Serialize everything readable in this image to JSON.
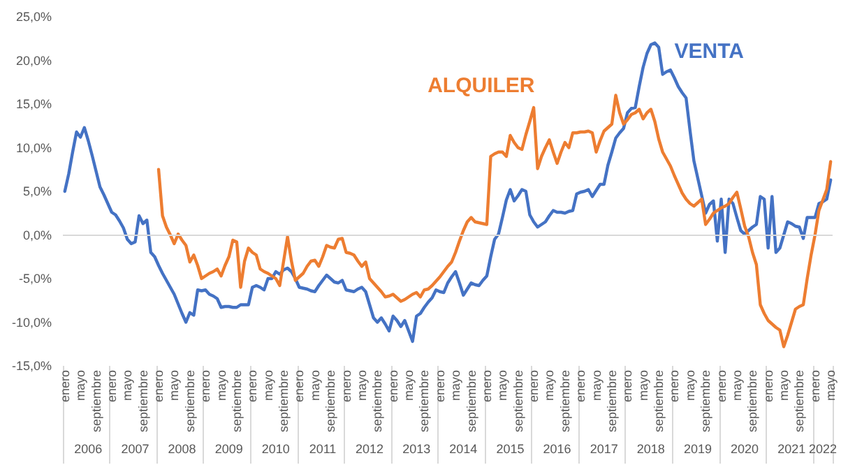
{
  "chart_data": {
    "type": "line",
    "categories": [
      "enero",
      null,
      null,
      null,
      "mayo",
      null,
      null,
      null,
      "septiembre",
      null,
      null,
      null,
      "enero",
      null,
      null,
      null,
      "mayo",
      null,
      null,
      null,
      "septiembre",
      null,
      null,
      null,
      "enero",
      null,
      null,
      null,
      "mayo",
      null,
      null,
      null,
      "septiembre",
      null,
      null,
      null,
      "enero",
      null,
      null,
      null,
      "mayo",
      null,
      null,
      null,
      "septiembre",
      null,
      null,
      null,
      "enero",
      null,
      null,
      null,
      "mayo",
      null,
      null,
      null,
      "septiembre",
      null,
      null,
      null,
      "enero",
      null,
      null,
      null,
      "mayo",
      null,
      null,
      null,
      "septiembre",
      null,
      null,
      null,
      "enero",
      null,
      null,
      null,
      "mayo",
      null,
      null,
      null,
      "septiembre",
      null,
      null,
      null,
      "enero",
      null,
      null,
      null,
      "mayo",
      null,
      null,
      null,
      "septiembre",
      null,
      null,
      null,
      "enero",
      null,
      null,
      null,
      "mayo",
      null,
      null,
      null,
      "septiembre",
      null,
      null,
      null,
      "enero",
      null,
      null,
      null,
      "mayo",
      null,
      null,
      null,
      "septiembre",
      null,
      null,
      null,
      "enero",
      null,
      null,
      null,
      "mayo",
      null,
      null,
      null,
      "septiembre",
      null,
      null,
      null,
      "enero",
      null,
      null,
      null,
      "mayo",
      null,
      null,
      null,
      "septiembre",
      null,
      null,
      null,
      "enero",
      null,
      null,
      null,
      "mayo",
      null,
      null,
      null,
      "septiembre",
      null,
      null,
      null,
      "enero",
      null,
      null,
      null,
      "mayo",
      null,
      null,
      null,
      "septiembre",
      null,
      null,
      null,
      "enero",
      null,
      null,
      null,
      "mayo",
      null,
      null,
      null,
      "septiembre",
      null,
      null,
      null,
      "enero",
      null,
      null,
      null,
      "mayo",
      null,
      null,
      null,
      "septiembre",
      null,
      null,
      null,
      "enero",
      null,
      null,
      null,
      "mayo"
    ],
    "series": [
      {
        "name": "VENTA",
        "color": "#4472c4",
        "values": [
          5,
          7,
          9.5,
          11.8,
          11.2,
          12.3,
          10.8,
          9.1,
          7.3,
          5.5,
          4.6,
          3.6,
          2.6,
          2.3,
          1.6,
          0.8,
          -0.5,
          -1,
          -0.8,
          2.2,
          1.3,
          1.7,
          -2,
          -2.5,
          -3.5,
          -4.4,
          -5.2,
          -6,
          -6.8,
          -7.9,
          -9,
          -10,
          -8.9,
          -9.2,
          -6.3,
          -6.4,
          -6.3,
          -6.8,
          -7,
          -7.3,
          -8.3,
          -8.2,
          -8.2,
          -8.3,
          -8.3,
          -8,
          -8,
          -8,
          -6,
          -5.8,
          -6,
          -6.3,
          -5,
          -5,
          -4.2,
          -4.5,
          -4,
          -3.8,
          -4.2,
          -5,
          -6,
          -6.1,
          -6.2,
          -6.4,
          -6.5,
          -5.8,
          -5.2,
          -4.6,
          -5,
          -5.4,
          -5.5,
          -5.2,
          -6.3,
          -6.4,
          -6.5,
          -6.2,
          -6,
          -6.5,
          -8,
          -9.5,
          -10,
          -9.5,
          -10.2,
          -11,
          -9.3,
          -9.8,
          -10.5,
          -9.8,
          -11,
          -12.2,
          -9.3,
          -9,
          -8.3,
          -7.7,
          -7.2,
          -6.3,
          -6.5,
          -6.6,
          -5.5,
          -4.8,
          -4.2,
          -5.5,
          -6.9,
          -6.2,
          -5.5,
          -5.7,
          -5.8,
          -5.2,
          -4.7,
          -2.5,
          -0.5,
          0.1,
          2,
          4,
          5.2,
          3.9,
          4.5,
          5.2,
          5,
          2.3,
          1.5,
          0.9,
          1.2,
          1.5,
          2.2,
          2.8,
          2.6,
          2.6,
          2.5,
          2.7,
          2.8,
          4.7,
          4.9,
          5,
          5.2,
          4.4,
          5.1,
          5.8,
          5.8,
          8,
          9.5,
          11.1,
          11.7,
          12.2,
          14,
          14.5,
          14.6,
          17,
          19.2,
          20.8,
          21.8,
          22,
          21.5,
          18.4,
          18.7,
          18.9,
          18,
          17,
          16.3,
          15.7,
          12,
          8.5,
          6.5,
          4.5,
          2.5,
          3.5,
          3.9,
          -0.7,
          4.1,
          -2,
          4.1,
          3.6,
          2,
          0.5,
          0.1,
          0.5,
          0.9,
          1.2,
          4.4,
          4.1,
          -1.5,
          4.4,
          -2,
          -1.5,
          0,
          1.5,
          1.3,
          1,
          0.9,
          -0.4,
          2,
          2,
          2,
          3.6,
          3.8,
          4.1,
          6.3
        ]
      },
      {
        "name": "ALQUILER",
        "color": "#ed7d31",
        "values": [
          null,
          null,
          null,
          null,
          null,
          null,
          null,
          null,
          null,
          null,
          null,
          null,
          null,
          null,
          null,
          null,
          null,
          null,
          null,
          null,
          null,
          null,
          null,
          null,
          7.5,
          2.2,
          0.9,
          0,
          -1,
          0.1,
          -0.6,
          -1.2,
          -3.1,
          -2.3,
          -3.5,
          -5,
          -4.7,
          -4.4,
          -4.2,
          -3.9,
          -4.7,
          -3.5,
          -2.5,
          -0.6,
          -0.8,
          -6,
          -3,
          -1.5,
          -2,
          -2.3,
          -3.9,
          -4.2,
          -4.4,
          -4.7,
          -5,
          -5.8,
          -3,
          -0.2,
          -3,
          -5.2,
          -4.8,
          -4.4,
          -3.6,
          -3,
          -2.9,
          -3.6,
          -2.5,
          -1.2,
          -1.4,
          -1.5,
          -0.5,
          -0.4,
          -2,
          -2.1,
          -2.3,
          -3,
          -3.6,
          -3.1,
          -5,
          -5.5,
          -6,
          -6.5,
          -7.1,
          -7,
          -6.8,
          -7.2,
          -7.6,
          -7.4,
          -7.1,
          -6.8,
          -6.6,
          -7.1,
          -6.3,
          -6.2,
          -5.8,
          -5.3,
          -4.8,
          -4.2,
          -3.6,
          -3.1,
          -2,
          -0.7,
          0.5,
          1.5,
          2,
          1.5,
          1.4,
          1.3,
          1.2,
          9,
          9.3,
          9.5,
          9.5,
          9,
          11.4,
          10.6,
          10,
          9.8,
          11.5,
          13,
          14.6,
          7.6,
          9,
          10,
          10.9,
          9.5,
          8.2,
          9.5,
          10.6,
          10,
          11.7,
          11.7,
          11.8,
          11.8,
          11.9,
          11.7,
          9.5,
          10.8,
          11.9,
          12.3,
          12.7,
          16,
          14,
          12.7,
          13.2,
          13.8,
          14,
          14.4,
          13.3,
          14,
          14.4,
          13,
          11,
          9.5,
          8.7,
          7.9,
          6.8,
          5.8,
          4.8,
          4.1,
          3.6,
          3.3,
          3.7,
          4.1,
          1.2,
          1.8,
          2.5,
          2.8,
          3.1,
          3.3,
          3.6,
          4.3,
          4.9,
          3,
          1,
          -0.2,
          -2,
          -3.4,
          -8,
          -9,
          -9.8,
          -10.2,
          -10.6,
          -10.9,
          -12.8,
          -11.5,
          -10,
          -8.5,
          -8.2,
          -8,
          -5,
          -2.3,
          0,
          2.8,
          4,
          5.2,
          8.4
        ]
      }
    ],
    "ylim": [
      -15,
      25
    ],
    "yticks": [
      {
        "value": -15,
        "label": "-15,0%"
      },
      {
        "value": -10,
        "label": "-10,0%"
      },
      {
        "value": -5,
        "label": "-5,0%"
      },
      {
        "value": 0,
        "label": "0,0%"
      },
      {
        "value": 5,
        "label": "5,0%"
      },
      {
        "value": 10,
        "label": "10,0%"
      },
      {
        "value": 15,
        "label": "15,0%"
      },
      {
        "value": 20,
        "label": "20,0%"
      },
      {
        "value": 25,
        "label": "25,0%"
      }
    ],
    "annotations": [
      "2006",
      "2007",
      "2008",
      "2009",
      "2010",
      "2011",
      "2012",
      "2013",
      "2014",
      "2015",
      "2016",
      "2017",
      "2018",
      "2019",
      "2020",
      "2021",
      "2022"
    ],
    "ref_lines": [
      {
        "axis": "y",
        "value": 0,
        "color": "#d9d9d9"
      }
    ],
    "grid": false,
    "legend": false,
    "marker": "none",
    "line_style": "solid"
  }
}
